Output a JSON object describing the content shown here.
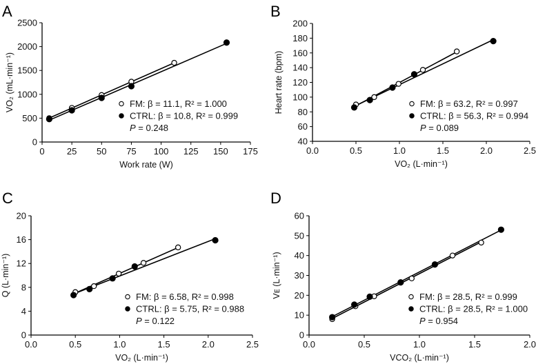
{
  "chart_data": [
    {
      "type": "scatter",
      "panel": "A",
      "xlabel": "Work rate (W)",
      "ylabel": "VO₂ (mL·min⁻¹)",
      "xlim": [
        0,
        175
      ],
      "ylim": [
        0,
        2500
      ],
      "xticks": [
        0,
        25,
        50,
        75,
        100,
        125,
        150,
        175
      ],
      "yticks": [
        0,
        500,
        1000,
        1500,
        2000,
        2500
      ],
      "xtick_labels": [
        "0",
        "25",
        "50",
        "75",
        "100",
        "125",
        "150",
        "175"
      ],
      "ytick_labels": [
        "0",
        "500",
        "1000",
        "1500",
        "2000",
        "2500"
      ],
      "legend_placement": "bottom-right",
      "series": [
        {
          "name": "FM",
          "marker": "open-circle",
          "label": "FM: β = 11.1, R² = 1.000",
          "x": [
            6,
            25,
            50,
            75,
            111
          ],
          "y": [
            500,
            715,
            985,
            1265,
            1660
          ]
        },
        {
          "name": "CTRL",
          "marker": "filled-circle",
          "label": "CTRL: β = 10.8, R² = 0.999",
          "x": [
            6,
            25,
            50,
            75,
            155
          ],
          "y": [
            480,
            665,
            925,
            1170,
            2085
          ]
        }
      ],
      "p_label": "P",
      "p_value": "= 0.248"
    },
    {
      "type": "scatter",
      "panel": "B",
      "xlabel": "VO₂ (L·min⁻¹)",
      "ylabel": "Heart rate (bpm)",
      "xlim": [
        0,
        2.5
      ],
      "ylim": [
        40,
        200
      ],
      "xticks": [
        0,
        0.5,
        1.0,
        1.5,
        2.0,
        2.5
      ],
      "yticks": [
        40,
        60,
        80,
        100,
        120,
        140,
        160,
        180,
        200
      ],
      "xtick_labels": [
        "0.0",
        "0.5",
        "1.0",
        "1.5",
        "2.0",
        "2.5"
      ],
      "ytick_labels": [
        "40",
        "60",
        "80",
        "100",
        "120",
        "140",
        "160",
        "180",
        "200"
      ],
      "legend_placement": "bottom-right",
      "series": [
        {
          "name": "FM",
          "marker": "open-circle",
          "label": "FM: β = 63.2, R² = 0.997",
          "x": [
            0.5,
            0.71,
            0.99,
            1.27,
            1.66
          ],
          "y": [
            90,
            100,
            118,
            137,
            162
          ]
        },
        {
          "name": "CTRL",
          "marker": "filled-circle",
          "label": "CTRL: β = 56.3, R² = 0.994",
          "x": [
            0.48,
            0.66,
            0.92,
            1.17,
            2.08
          ],
          "y": [
            86,
            96,
            113,
            131,
            176
          ]
        }
      ],
      "p_label": "P",
      "p_value": "= 0.089"
    },
    {
      "type": "scatter",
      "panel": "C",
      "xlabel": "VO₂ (L·min⁻¹)",
      "ylabel": "Q (L·min⁻¹)",
      "xlim": [
        0,
        2.5
      ],
      "ylim": [
        0,
        20
      ],
      "xticks": [
        0,
        0.5,
        1.0,
        1.5,
        2.0,
        2.5
      ],
      "yticks": [
        0,
        4,
        8,
        12,
        16,
        20
      ],
      "xtick_labels": [
        "0.0",
        "0.5",
        "1.0",
        "1.5",
        "2.0",
        "2.5"
      ],
      "ytick_labels": [
        "0",
        "4",
        "8",
        "12",
        "16",
        "20"
      ],
      "legend_placement": "bottom-right",
      "series": [
        {
          "name": "FM",
          "marker": "open-circle",
          "label": "FM: β = 6.58, R² = 0.998",
          "x": [
            0.5,
            0.71,
            0.99,
            1.27,
            1.66
          ],
          "y": [
            7.2,
            8.2,
            10.3,
            12.1,
            14.7
          ]
        },
        {
          "name": "CTRL",
          "marker": "filled-circle",
          "label": "CTRL: β = 5.75, R² = 0.988",
          "x": [
            0.48,
            0.66,
            0.92,
            1.17,
            2.08
          ],
          "y": [
            6.7,
            7.7,
            9.5,
            11.5,
            15.9
          ]
        }
      ],
      "p_label": "P",
      "p_value": "= 0.122"
    },
    {
      "type": "scatter",
      "panel": "D",
      "xlabel": "VCO₂ (L·min⁻¹)",
      "ylabel": "Vᴇ (L·min⁻¹)",
      "xlim": [
        0,
        2.0
      ],
      "ylim": [
        0,
        60
      ],
      "xticks": [
        0,
        0.5,
        1.0,
        1.5,
        2.0
      ],
      "yticks": [
        0,
        10,
        20,
        30,
        40,
        50,
        60
      ],
      "xtick_labels": [
        "0.0",
        "0.5",
        "1.0",
        "1.5",
        "2.0"
      ],
      "ytick_labels": [
        "0",
        "10",
        "20",
        "30",
        "40",
        "50",
        "60"
      ],
      "legend_placement": "bottom-right",
      "series": [
        {
          "name": "FM",
          "marker": "open-circle",
          "label": "FM: β = 28.5, R² = 0.999",
          "x": [
            0.21,
            0.42,
            0.59,
            0.93,
            1.3,
            1.56
          ],
          "y": [
            8,
            14.5,
            19.5,
            28.5,
            40,
            46.5
          ]
        },
        {
          "name": "CTRL",
          "marker": "filled-circle",
          "label": "CTRL: β = 28.5, R² = 1.000",
          "x": [
            0.21,
            0.41,
            0.55,
            0.83,
            1.14,
            1.74
          ],
          "y": [
            9,
            15.3,
            19.3,
            26.5,
            35.5,
            53
          ]
        }
      ],
      "p_label": "P",
      "p_value": "= 0.954"
    }
  ]
}
